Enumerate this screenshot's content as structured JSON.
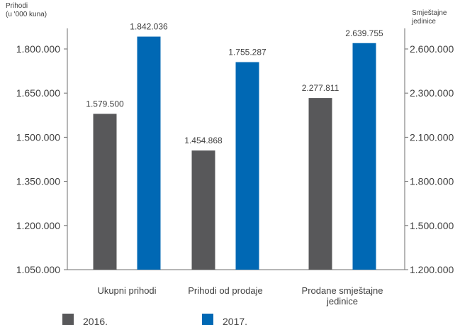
{
  "chart_data": {
    "type": "bar",
    "categories": [
      "Ukupni prihodi",
      "Prihodi od prodaje",
      "Prodane smještajne jedinice"
    ],
    "category_label_lines": [
      [
        "Ukupni prihodi"
      ],
      [
        "Prihodi od prodaje"
      ],
      [
        "Prodane smještajne",
        "jedinice"
      ]
    ],
    "series": [
      {
        "name": "2016.",
        "color": "#58585a",
        "values": [
          1579500,
          1454868,
          2277811
        ],
        "labels": [
          "1.579.500",
          "1.454.868",
          "2.277.811"
        ]
      },
      {
        "name": "2017.",
        "color": "#0068b4",
        "values": [
          1842036,
          1755287,
          2639755
        ],
        "labels": [
          "1.842.036",
          "1.755.287",
          "2.639.755"
        ]
      }
    ],
    "value_axis_by_category": [
      "left",
      "left",
      "right"
    ],
    "left_axis": {
      "title_lines": [
        "Prihodi",
        "(u '000 kuna)"
      ],
      "ylim": [
        1050000,
        1842036
      ],
      "ticks": [
        1050000,
        1200000,
        1350000,
        1500000,
        1650000,
        1800000
      ],
      "tick_labels": [
        "1.050.000",
        "1.200.000",
        "1.350.000",
        "1.500.000",
        "1.650.000",
        "1.800.000"
      ]
    },
    "right_axis": {
      "title_lines": [
        "Smještajne",
        "jedinice"
      ],
      "ylim": [
        1200000,
        2639755
      ],
      "ticks": [
        1200000,
        1500000,
        1800000,
        2100000,
        2300000,
        2600000
      ],
      "tick_labels": [
        "1.200.000",
        "1.500.000",
        "1.800.000",
        "2.100.000",
        "2.300.000",
        "2.600.000"
      ]
    },
    "grid": false,
    "legend_position": "bottom-left"
  }
}
